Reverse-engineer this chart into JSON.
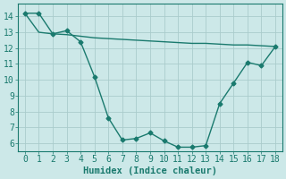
{
  "line1_x": [
    0,
    1,
    2,
    3,
    4,
    5,
    6,
    7,
    8,
    9,
    10,
    11,
    12,
    13,
    14,
    15,
    16,
    17,
    18
  ],
  "line1_y": [
    14.2,
    14.2,
    12.9,
    13.1,
    12.4,
    10.2,
    7.6,
    6.2,
    6.3,
    6.65,
    6.15,
    5.75,
    5.75,
    5.85,
    8.5,
    9.8,
    11.1,
    10.9,
    12.1
  ],
  "line2_x": [
    0,
    1,
    2,
    3,
    4,
    5,
    6,
    7,
    8,
    9,
    10,
    11,
    12,
    13,
    14,
    15,
    16,
    17,
    18
  ],
  "line2_y": [
    14.2,
    13.0,
    12.9,
    12.85,
    12.75,
    12.65,
    12.6,
    12.55,
    12.5,
    12.45,
    12.4,
    12.35,
    12.3,
    12.3,
    12.25,
    12.2,
    12.2,
    12.15,
    12.1
  ],
  "line_color": "#1a7a6e",
  "bg_color": "#cce8e8",
  "grid_color": "#aacccc",
  "xlabel": "Humidex (Indice chaleur)",
  "xlim": [
    -0.5,
    18.5
  ],
  "ylim": [
    5.5,
    14.8
  ],
  "yticks": [
    6,
    7,
    8,
    9,
    10,
    11,
    12,
    13,
    14
  ],
  "xticks": [
    0,
    1,
    2,
    3,
    4,
    5,
    6,
    7,
    8,
    9,
    10,
    11,
    12,
    13,
    14,
    15,
    16,
    17,
    18
  ],
  "marker_size": 2.5,
  "line_width": 1.0,
  "font_size": 7.5
}
